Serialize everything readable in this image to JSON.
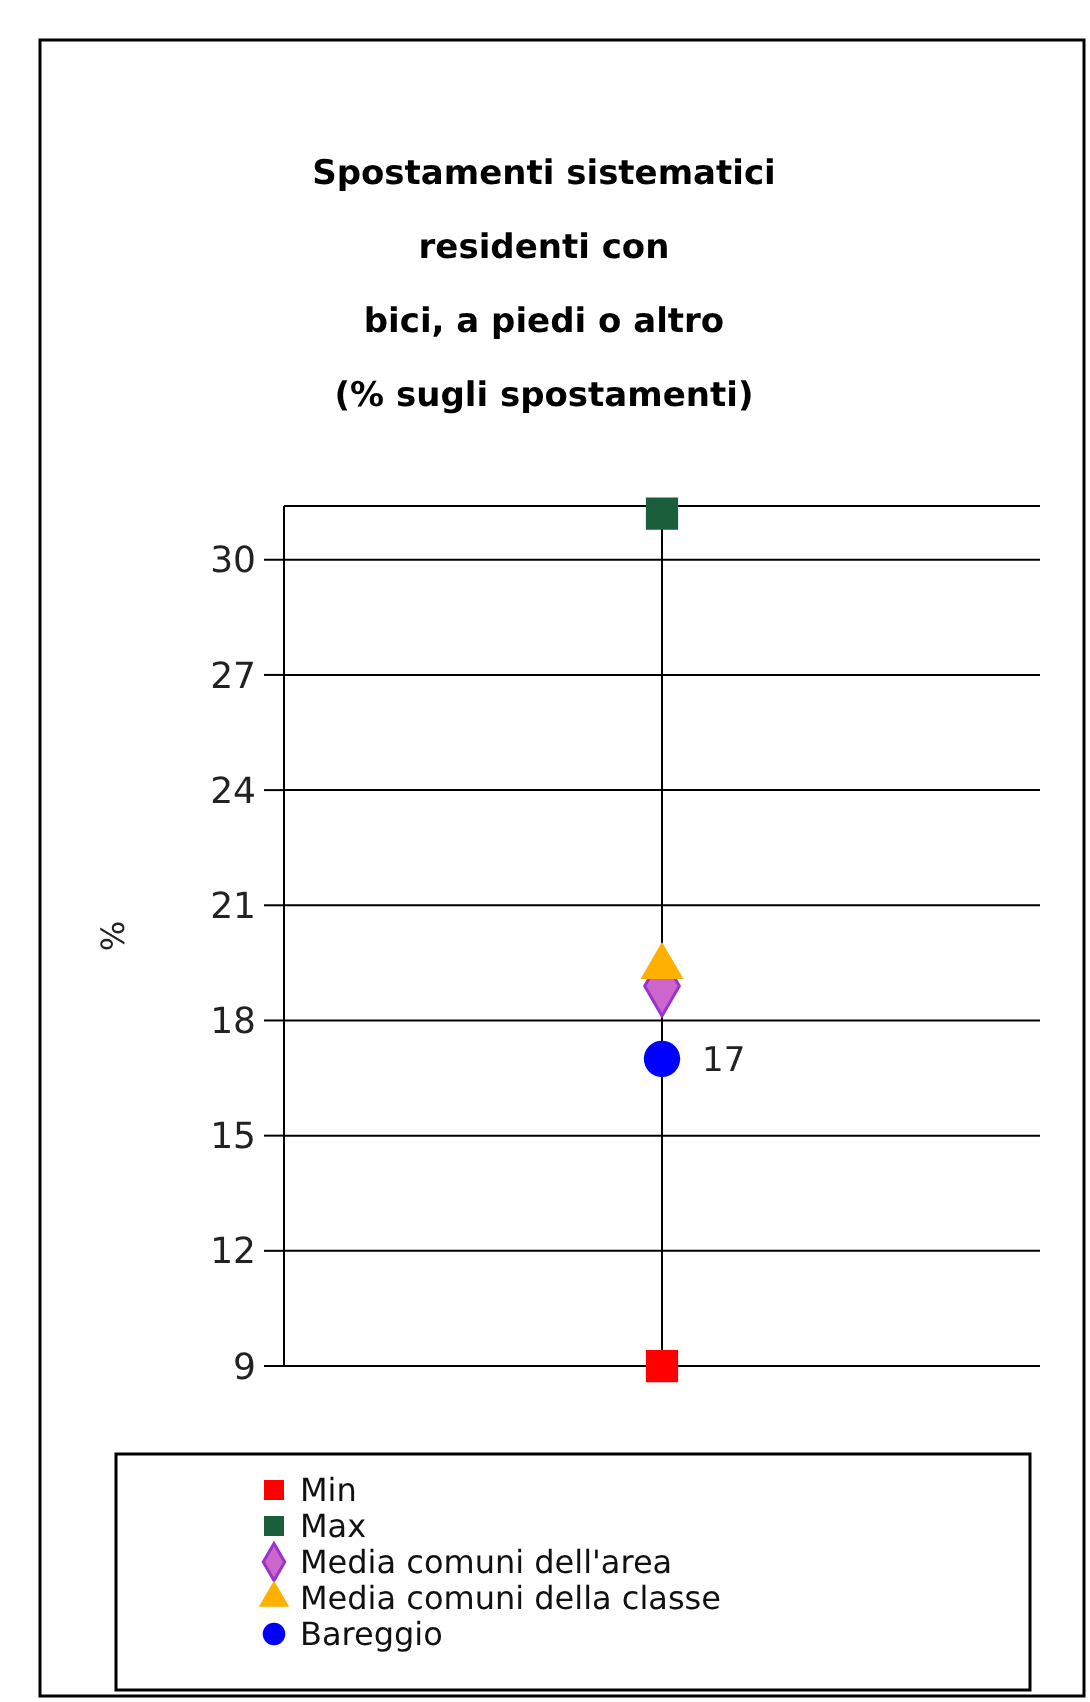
{
  "chart_data": {
    "type": "scatter",
    "title": "Spostamenti sistematici\nresidenti con\nbici, a piedi o altro\n(% sugli spostamenti)",
    "ylabel": "%",
    "categories": [
      null
    ],
    "series": [
      {
        "name": "Min",
        "color": "#ff0000",
        "marker": "square",
        "values": [
          9
        ]
      },
      {
        "name": "Max",
        "color": "#1a5e3c",
        "marker": "square",
        "values": [
          31.2
        ]
      },
      {
        "name": "Media comuni dell'area",
        "color": "#cc66cc",
        "marker": "diamond",
        "values": [
          18.9
        ]
      },
      {
        "name": "Media comuni della classe",
        "color": "#ffb000",
        "marker": "triangle",
        "values": [
          19.4
        ]
      },
      {
        "name": "Bareggio",
        "color": "#0000ff",
        "marker": "circle",
        "values": [
          17
        ],
        "value_labels": [
          "17"
        ]
      }
    ],
    "ylim": [
      9,
      31.4
    ],
    "yticks": [
      9,
      12,
      15,
      18,
      21,
      24,
      27,
      30
    ],
    "grid": true,
    "legend": "bottom"
  }
}
